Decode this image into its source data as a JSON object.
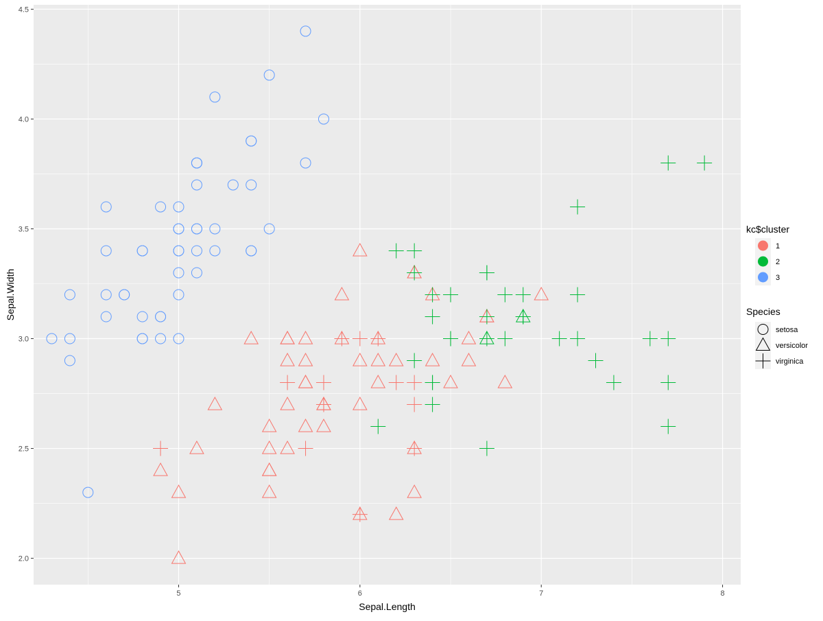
{
  "chart_data": {
    "type": "scatter",
    "xlabel": "Sepal.Length",
    "ylabel": "Sepal.Width",
    "xlim": [
      4.2,
      8.1
    ],
    "ylim": [
      1.88,
      4.52
    ],
    "x_ticks": [
      5,
      6,
      7,
      8
    ],
    "x_tick_labels": [
      "5",
      "6",
      "7",
      "8"
    ],
    "y_ticks": [
      2.0,
      2.5,
      3.0,
      3.5,
      4.0,
      4.5
    ],
    "y_tick_labels": [
      "2.0",
      "2.5",
      "3.0",
      "3.5",
      "4.0",
      "4.5"
    ],
    "grid": true,
    "background": "#ebebeb",
    "legend_position": "right",
    "colors": {
      "1": "#f8766d",
      "2": "#00ba38",
      "3": "#619cff"
    },
    "legend_color": {
      "title": "kc$cluster",
      "items": [
        {
          "key": "1",
          "label": "1"
        },
        {
          "key": "2",
          "label": "2"
        },
        {
          "key": "3",
          "label": "3"
        }
      ]
    },
    "legend_shape": {
      "title": "Species",
      "items": [
        {
          "key": "setosa",
          "label": "setosa",
          "shape": "circle"
        },
        {
          "key": "versicolor",
          "label": "versicolor",
          "shape": "triangle"
        },
        {
          "key": "virginica",
          "label": "virginica",
          "shape": "plus"
        }
      ]
    },
    "points": [
      [
        5.1,
        3.5,
        "setosa",
        "3"
      ],
      [
        4.9,
        3.0,
        "setosa",
        "3"
      ],
      [
        4.7,
        3.2,
        "setosa",
        "3"
      ],
      [
        4.6,
        3.1,
        "setosa",
        "3"
      ],
      [
        5.0,
        3.6,
        "setosa",
        "3"
      ],
      [
        5.4,
        3.9,
        "setosa",
        "3"
      ],
      [
        4.6,
        3.4,
        "setosa",
        "3"
      ],
      [
        5.0,
        3.4,
        "setosa",
        "3"
      ],
      [
        4.4,
        2.9,
        "setosa",
        "3"
      ],
      [
        4.9,
        3.1,
        "setosa",
        "3"
      ],
      [
        5.4,
        3.7,
        "setosa",
        "3"
      ],
      [
        4.8,
        3.4,
        "setosa",
        "3"
      ],
      [
        4.8,
        3.0,
        "setosa",
        "3"
      ],
      [
        4.3,
        3.0,
        "setosa",
        "3"
      ],
      [
        5.8,
        4.0,
        "setosa",
        "3"
      ],
      [
        5.7,
        4.4,
        "setosa",
        "3"
      ],
      [
        5.4,
        3.9,
        "setosa",
        "3"
      ],
      [
        5.1,
        3.5,
        "setosa",
        "3"
      ],
      [
        5.7,
        3.8,
        "setosa",
        "3"
      ],
      [
        5.1,
        3.8,
        "setosa",
        "3"
      ],
      [
        5.4,
        3.4,
        "setosa",
        "3"
      ],
      [
        5.1,
        3.7,
        "setosa",
        "3"
      ],
      [
        4.6,
        3.6,
        "setosa",
        "3"
      ],
      [
        5.1,
        3.3,
        "setosa",
        "3"
      ],
      [
        4.8,
        3.4,
        "setosa",
        "3"
      ],
      [
        5.0,
        3.0,
        "setosa",
        "3"
      ],
      [
        5.0,
        3.4,
        "setosa",
        "3"
      ],
      [
        5.2,
        3.5,
        "setosa",
        "3"
      ],
      [
        5.2,
        3.4,
        "setosa",
        "3"
      ],
      [
        4.7,
        3.2,
        "setosa",
        "3"
      ],
      [
        4.8,
        3.1,
        "setosa",
        "3"
      ],
      [
        5.4,
        3.4,
        "setosa",
        "3"
      ],
      [
        5.2,
        4.1,
        "setosa",
        "3"
      ],
      [
        5.5,
        4.2,
        "setosa",
        "3"
      ],
      [
        4.9,
        3.1,
        "setosa",
        "3"
      ],
      [
        5.0,
        3.2,
        "setosa",
        "3"
      ],
      [
        5.5,
        3.5,
        "setosa",
        "3"
      ],
      [
        4.9,
        3.6,
        "setosa",
        "3"
      ],
      [
        4.4,
        3.0,
        "setosa",
        "3"
      ],
      [
        5.1,
        3.4,
        "setosa",
        "3"
      ],
      [
        5.0,
        3.5,
        "setosa",
        "3"
      ],
      [
        4.5,
        2.3,
        "setosa",
        "3"
      ],
      [
        4.4,
        3.2,
        "setosa",
        "3"
      ],
      [
        5.0,
        3.5,
        "setosa",
        "3"
      ],
      [
        5.1,
        3.8,
        "setosa",
        "3"
      ],
      [
        4.8,
        3.0,
        "setosa",
        "3"
      ],
      [
        5.1,
        3.8,
        "setosa",
        "3"
      ],
      [
        4.6,
        3.2,
        "setosa",
        "3"
      ],
      [
        5.3,
        3.7,
        "setosa",
        "3"
      ],
      [
        5.0,
        3.3,
        "setosa",
        "3"
      ],
      [
        7.0,
        3.2,
        "versicolor",
        "1"
      ],
      [
        6.4,
        3.2,
        "versicolor",
        "1"
      ],
      [
        6.9,
        3.1,
        "versicolor",
        "2"
      ],
      [
        5.5,
        2.3,
        "versicolor",
        "1"
      ],
      [
        6.5,
        2.8,
        "versicolor",
        "1"
      ],
      [
        5.7,
        2.8,
        "versicolor",
        "1"
      ],
      [
        6.3,
        3.3,
        "versicolor",
        "1"
      ],
      [
        4.9,
        2.4,
        "versicolor",
        "1"
      ],
      [
        6.6,
        2.9,
        "versicolor",
        "1"
      ],
      [
        5.2,
        2.7,
        "versicolor",
        "1"
      ],
      [
        5.0,
        2.0,
        "versicolor",
        "1"
      ],
      [
        5.9,
        3.0,
        "versicolor",
        "1"
      ],
      [
        6.0,
        2.2,
        "versicolor",
        "1"
      ],
      [
        6.1,
        2.9,
        "versicolor",
        "1"
      ],
      [
        5.6,
        2.9,
        "versicolor",
        "1"
      ],
      [
        6.7,
        3.1,
        "versicolor",
        "1"
      ],
      [
        5.6,
        3.0,
        "versicolor",
        "1"
      ],
      [
        5.8,
        2.7,
        "versicolor",
        "1"
      ],
      [
        6.2,
        2.2,
        "versicolor",
        "1"
      ],
      [
        5.6,
        2.5,
        "versicolor",
        "1"
      ],
      [
        5.9,
        3.2,
        "versicolor",
        "1"
      ],
      [
        6.1,
        2.8,
        "versicolor",
        "1"
      ],
      [
        6.3,
        2.5,
        "versicolor",
        "1"
      ],
      [
        6.4,
        2.9,
        "versicolor",
        "1"
      ],
      [
        6.6,
        3.0,
        "versicolor",
        "1"
      ],
      [
        6.8,
        2.8,
        "versicolor",
        "1"
      ],
      [
        6.7,
        3.0,
        "versicolor",
        "2"
      ],
      [
        6.0,
        2.9,
        "versicolor",
        "1"
      ],
      [
        5.7,
        2.6,
        "versicolor",
        "1"
      ],
      [
        5.5,
        2.4,
        "versicolor",
        "1"
      ],
      [
        5.5,
        2.4,
        "versicolor",
        "1"
      ],
      [
        5.8,
        2.7,
        "versicolor",
        "1"
      ],
      [
        6.0,
        2.7,
        "versicolor",
        "1"
      ],
      [
        5.4,
        3.0,
        "versicolor",
        "1"
      ],
      [
        6.0,
        3.4,
        "versicolor",
        "1"
      ],
      [
        6.7,
        3.1,
        "versicolor",
        "1"
      ],
      [
        6.3,
        2.3,
        "versicolor",
        "1"
      ],
      [
        5.6,
        3.0,
        "versicolor",
        "1"
      ],
      [
        5.5,
        2.5,
        "versicolor",
        "1"
      ],
      [
        5.5,
        2.6,
        "versicolor",
        "1"
      ],
      [
        6.1,
        3.0,
        "versicolor",
        "1"
      ],
      [
        5.8,
        2.6,
        "versicolor",
        "1"
      ],
      [
        5.0,
        2.3,
        "versicolor",
        "1"
      ],
      [
        5.6,
        2.7,
        "versicolor",
        "1"
      ],
      [
        5.7,
        3.0,
        "versicolor",
        "1"
      ],
      [
        5.7,
        2.9,
        "versicolor",
        "1"
      ],
      [
        6.2,
        2.9,
        "versicolor",
        "1"
      ],
      [
        5.1,
        2.5,
        "versicolor",
        "1"
      ],
      [
        5.7,
        2.8,
        "versicolor",
        "1"
      ],
      [
        6.3,
        3.3,
        "versicolor",
        "1"
      ],
      [
        6.3,
        3.3,
        "virginica",
        "2"
      ],
      [
        5.8,
        2.7,
        "virginica",
        "1"
      ],
      [
        7.1,
        3.0,
        "virginica",
        "2"
      ],
      [
        6.3,
        2.9,
        "virginica",
        "2"
      ],
      [
        6.5,
        3.0,
        "virginica",
        "2"
      ],
      [
        7.6,
        3.0,
        "virginica",
        "2"
      ],
      [
        4.9,
        2.5,
        "virginica",
        "1"
      ],
      [
        7.3,
        2.9,
        "virginica",
        "2"
      ],
      [
        6.7,
        2.5,
        "virginica",
        "2"
      ],
      [
        7.2,
        3.6,
        "virginica",
        "2"
      ],
      [
        6.5,
        3.2,
        "virginica",
        "2"
      ],
      [
        6.4,
        2.7,
        "virginica",
        "2"
      ],
      [
        6.8,
        3.0,
        "virginica",
        "2"
      ],
      [
        5.7,
        2.5,
        "virginica",
        "1"
      ],
      [
        5.8,
        2.8,
        "virginica",
        "1"
      ],
      [
        6.4,
        3.2,
        "virginica",
        "2"
      ],
      [
        6.5,
        3.0,
        "virginica",
        "2"
      ],
      [
        7.7,
        3.8,
        "virginica",
        "2"
      ],
      [
        7.7,
        2.6,
        "virginica",
        "2"
      ],
      [
        6.0,
        2.2,
        "virginica",
        "1"
      ],
      [
        6.9,
        3.2,
        "virginica",
        "2"
      ],
      [
        5.6,
        2.8,
        "virginica",
        "1"
      ],
      [
        7.7,
        2.8,
        "virginica",
        "2"
      ],
      [
        6.3,
        2.7,
        "virginica",
        "1"
      ],
      [
        6.7,
        3.3,
        "virginica",
        "2"
      ],
      [
        7.2,
        3.2,
        "virginica",
        "2"
      ],
      [
        6.2,
        2.8,
        "virginica",
        "1"
      ],
      [
        6.1,
        3.0,
        "virginica",
        "1"
      ],
      [
        6.4,
        2.8,
        "virginica",
        "2"
      ],
      [
        7.2,
        3.0,
        "virginica",
        "2"
      ],
      [
        7.4,
        2.8,
        "virginica",
        "2"
      ],
      [
        7.9,
        3.8,
        "virginica",
        "2"
      ],
      [
        6.4,
        2.8,
        "virginica",
        "2"
      ],
      [
        6.3,
        2.8,
        "virginica",
        "1"
      ],
      [
        6.1,
        2.6,
        "virginica",
        "2"
      ],
      [
        7.7,
        3.0,
        "virginica",
        "2"
      ],
      [
        6.3,
        3.4,
        "virginica",
        "2"
      ],
      [
        6.4,
        3.1,
        "virginica",
        "2"
      ],
      [
        6.0,
        3.0,
        "virginica",
        "1"
      ],
      [
        6.9,
        3.1,
        "virginica",
        "2"
      ],
      [
        6.7,
        3.1,
        "virginica",
        "2"
      ],
      [
        6.9,
        3.1,
        "virginica",
        "2"
      ],
      [
        5.8,
        2.7,
        "virginica",
        "1"
      ],
      [
        6.8,
        3.2,
        "virginica",
        "2"
      ],
      [
        6.7,
        3.3,
        "virginica",
        "2"
      ],
      [
        6.7,
        3.0,
        "virginica",
        "2"
      ],
      [
        6.3,
        2.5,
        "virginica",
        "1"
      ],
      [
        6.5,
        3.0,
        "virginica",
        "2"
      ],
      [
        6.2,
        3.4,
        "virginica",
        "2"
      ],
      [
        5.9,
        3.0,
        "virginica",
        "1"
      ]
    ]
  }
}
